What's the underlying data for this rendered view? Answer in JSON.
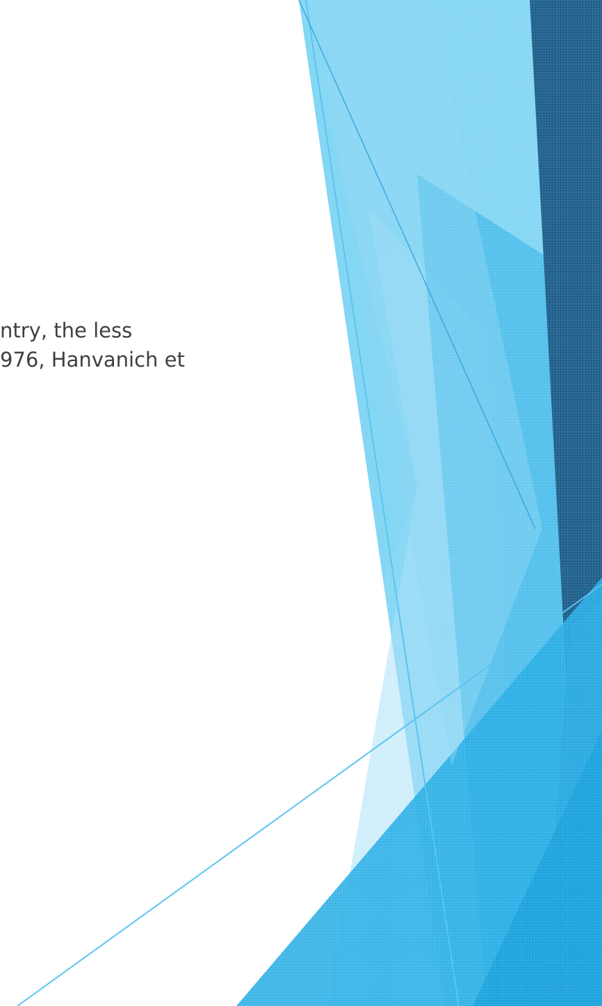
{
  "slide": {
    "text_lines": [
      "ntry, the less",
      "976, Hanvanich et"
    ]
  },
  "colors": {
    "background": "#ffffff",
    "text": "#404040",
    "light_blue": "#5bc4ef",
    "mid_blue": "#29aee6",
    "dark_blue": "#1f5f8b",
    "deep_blue": "#2b7ab8"
  }
}
